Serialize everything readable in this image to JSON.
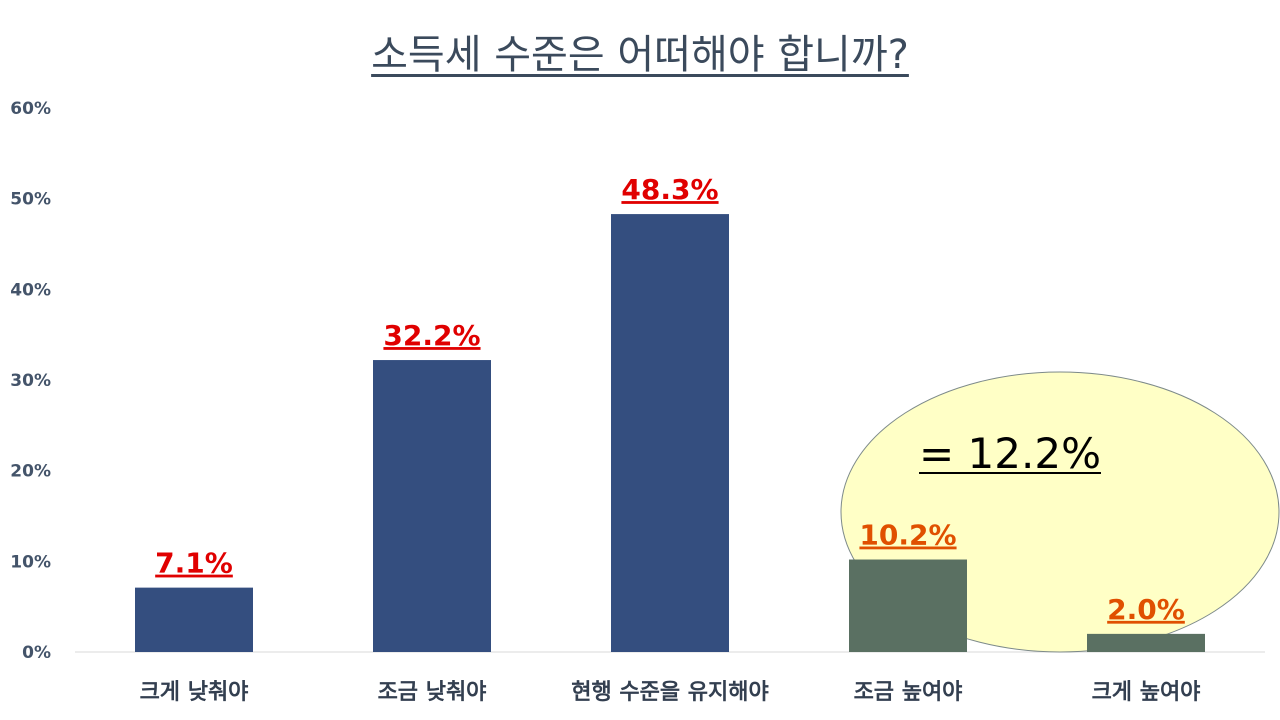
{
  "chart_data": {
    "type": "bar",
    "title": "소득세 수준은 어떠해야 합니까?",
    "categories": [
      "크게 낮춰야",
      "조금 낮춰야",
      "현행 수준을 유지해야",
      "조금 높여야",
      "크게 높여야"
    ],
    "values": [
      7.1,
      32.2,
      48.3,
      10.2,
      2.0
    ],
    "data_labels": [
      "7.1%",
      "32.2%",
      "48.3%",
      "10.2%",
      "2.0%"
    ],
    "ylim": [
      0,
      60
    ],
    "y_ticks": [
      "0%",
      "10%",
      "20%",
      "30%",
      "40%",
      "50%",
      "60%"
    ],
    "grid": false,
    "legend": "none",
    "annotation": {
      "text": "= 12.2%",
      "highlighted_categories": [
        "조금 높여야",
        "크게 높여야"
      ]
    }
  },
  "colors": {
    "bar": "#344e7f",
    "bar_highlighted": "#5a7062",
    "label_red": "#e00000",
    "label_orange": "#e05000",
    "ellipse_fill": "#ffffc6",
    "ellipse_stroke": "#7d8a8a"
  }
}
